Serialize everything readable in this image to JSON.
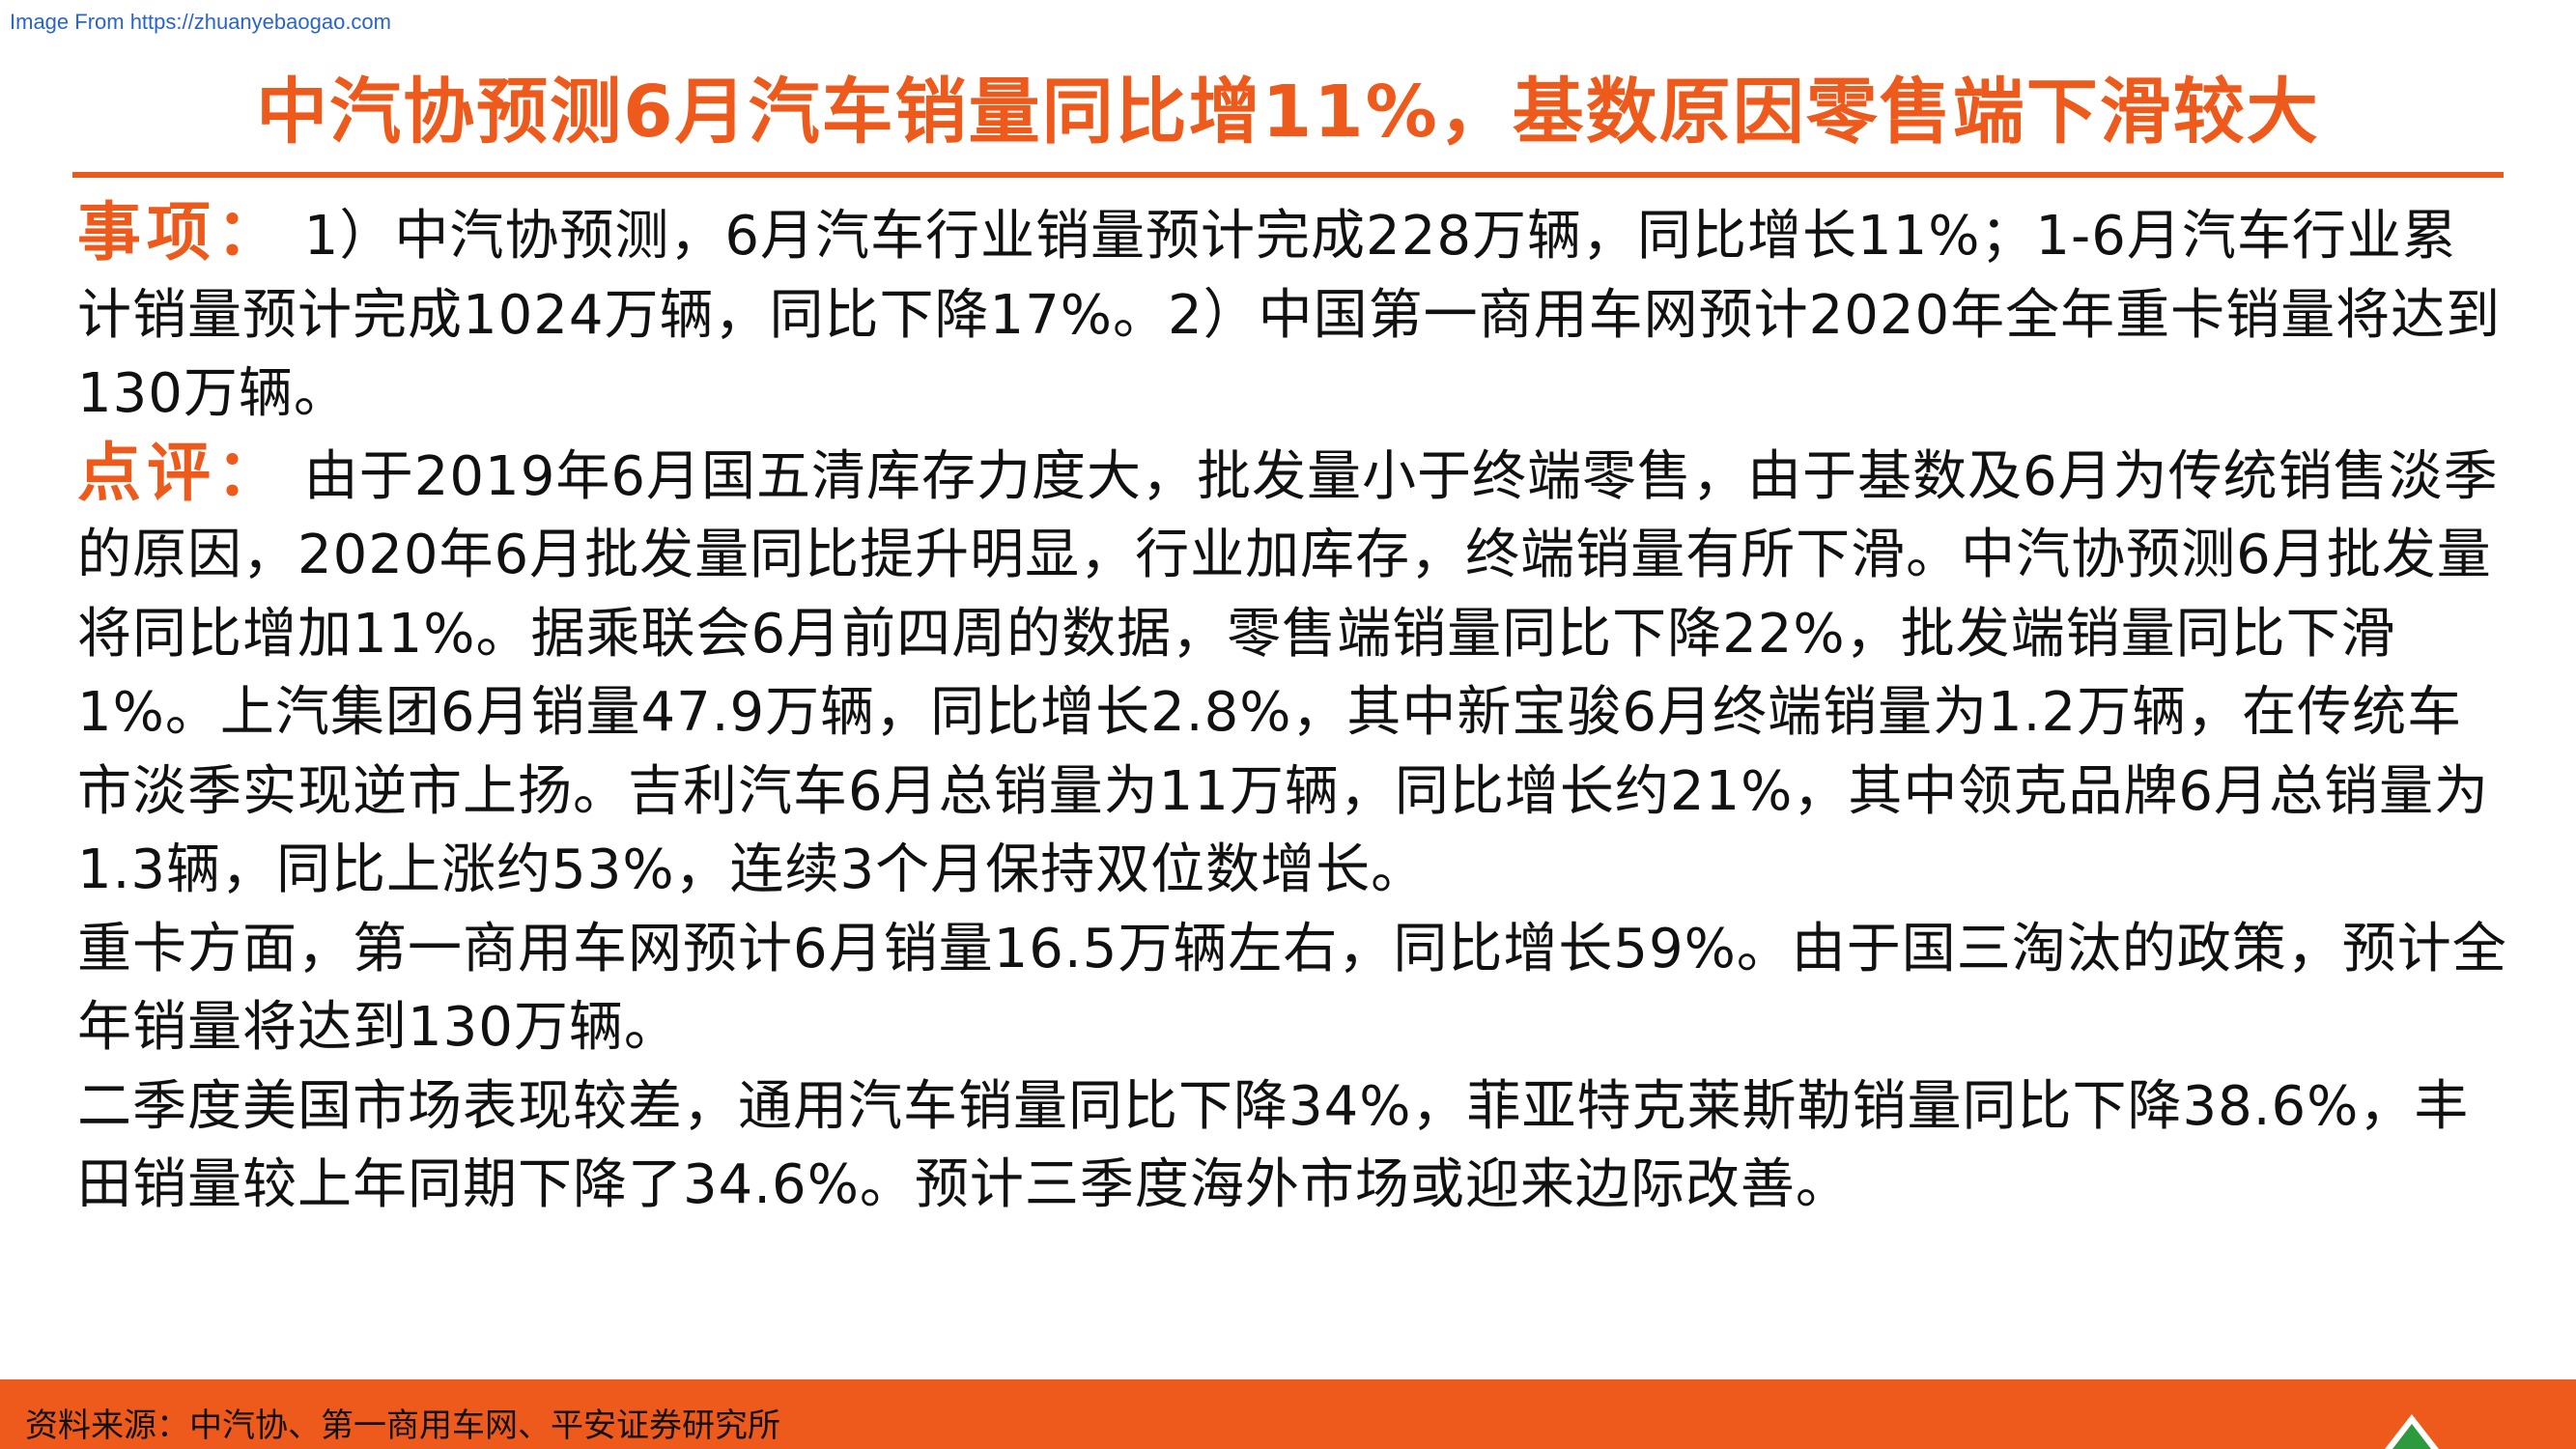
{
  "watermark": "Image From https://zhuanyebaogao.com",
  "title": "中汽协预测6月汽车销量同比增11%，基数原因零售端下滑较大",
  "matters": {
    "label": "事项：",
    "text": " 1）中汽协预测，6月汽车行业销量预计完成228万辆，同比增长11%；1-6月汽车行业累计销量预计完成1024万辆，同比下降17%。2）中国第一商用车网预计2020年全年重卡销量将达到130万辆。"
  },
  "comment": {
    "label": "点评：",
    "text": " 由于2019年6月国五清库存力度大，批发量小于终端零售，由于基数及6月为传统销售淡季的原因，2020年6月批发量同比提升明显，行业加库存，终端销量有所下滑。中汽协预测6月批发量将同比增加11%。据乘联会6月前四周的数据，零售端销量同比下降22%，批发端销量同比下滑1%。上汽集团6月销量47.9万辆，同比增长2.8%，其中新宝骏6月终端销量为1.2万辆，在传统车市淡季实现逆市上扬。吉利汽车6月总销量为11万辆，同比增长约21%，其中领克品牌6月总销量为1.3辆，同比上涨约53%，连续3个月保持双位数增长。"
  },
  "paragraph_heavy_truck": "重卡方面，第一商用车网预计6月销量16.5万辆左右，同比增长59%。由于国三淘汰的政策，预计全年销量将达到130万辆。",
  "paragraph_us_market": "二季度美国市场表现较差，通用汽车销量同比下降34%，菲亚特克莱斯勒销量同比下降38.6%，丰田销量较上年同期下降了34.6%。预计三季度海外市场或迎来边际改善。",
  "footer": {
    "source": "资料来源：中汽协、第一商用车网、平安证券研究所"
  },
  "colors": {
    "accent": "#ee5a1c",
    "text": "#111111",
    "watermark": "#2a64c8"
  }
}
